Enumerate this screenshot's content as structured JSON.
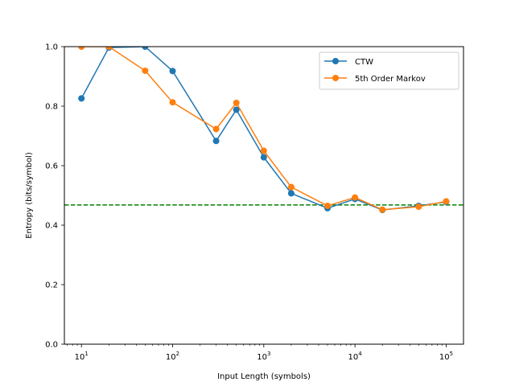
{
  "chart_data": {
    "type": "line",
    "title": "",
    "xlabel": "Input Length (symbols)",
    "ylabel": "Entropy (bits/symbol)",
    "xscale": "log",
    "xlim": [
      6.5,
      155000
    ],
    "ylim": [
      0,
      1
    ],
    "x_ticks": [
      {
        "value": 10,
        "base": "10",
        "exp": "1"
      },
      {
        "value": 100,
        "base": "10",
        "exp": "2"
      },
      {
        "value": 1000,
        "base": "10",
        "exp": "3"
      },
      {
        "value": 10000,
        "base": "10",
        "exp": "4"
      },
      {
        "value": 100000,
        "base": "10",
        "exp": "5"
      }
    ],
    "y_ticks": [
      {
        "value": 0.0,
        "label": "0.0"
      },
      {
        "value": 0.2,
        "label": "0.2"
      },
      {
        "value": 0.4,
        "label": "0.4"
      },
      {
        "value": 0.6,
        "label": "0.6"
      },
      {
        "value": 0.8,
        "label": "0.8"
      },
      {
        "value": 1.0,
        "label": "1.0"
      }
    ],
    "grid": false,
    "legend_position": "top-right",
    "reference_line": {
      "y": 0.468,
      "color": "#008000",
      "style": "dashed"
    },
    "series": [
      {
        "name": "CTW",
        "color": "#1f77b4",
        "x": [
          10,
          20,
          50,
          100,
          300,
          500,
          1000,
          2000,
          5000,
          10000,
          20000,
          50000,
          100000
        ],
        "y": [
          0.826,
          0.997,
          1.0,
          0.918,
          0.683,
          0.788,
          0.628,
          0.507,
          0.457,
          0.488,
          0.451,
          0.465,
          0.478
        ]
      },
      {
        "name": "5th Order Markov",
        "color": "#ff7f0e",
        "x": [
          10,
          20,
          50,
          100,
          300,
          500,
          1000,
          2000,
          5000,
          10000,
          20000,
          50000,
          100000
        ],
        "y": [
          1.0,
          1.0,
          0.919,
          0.813,
          0.723,
          0.811,
          0.65,
          0.528,
          0.465,
          0.493,
          0.452,
          0.462,
          0.48
        ]
      }
    ]
  }
}
